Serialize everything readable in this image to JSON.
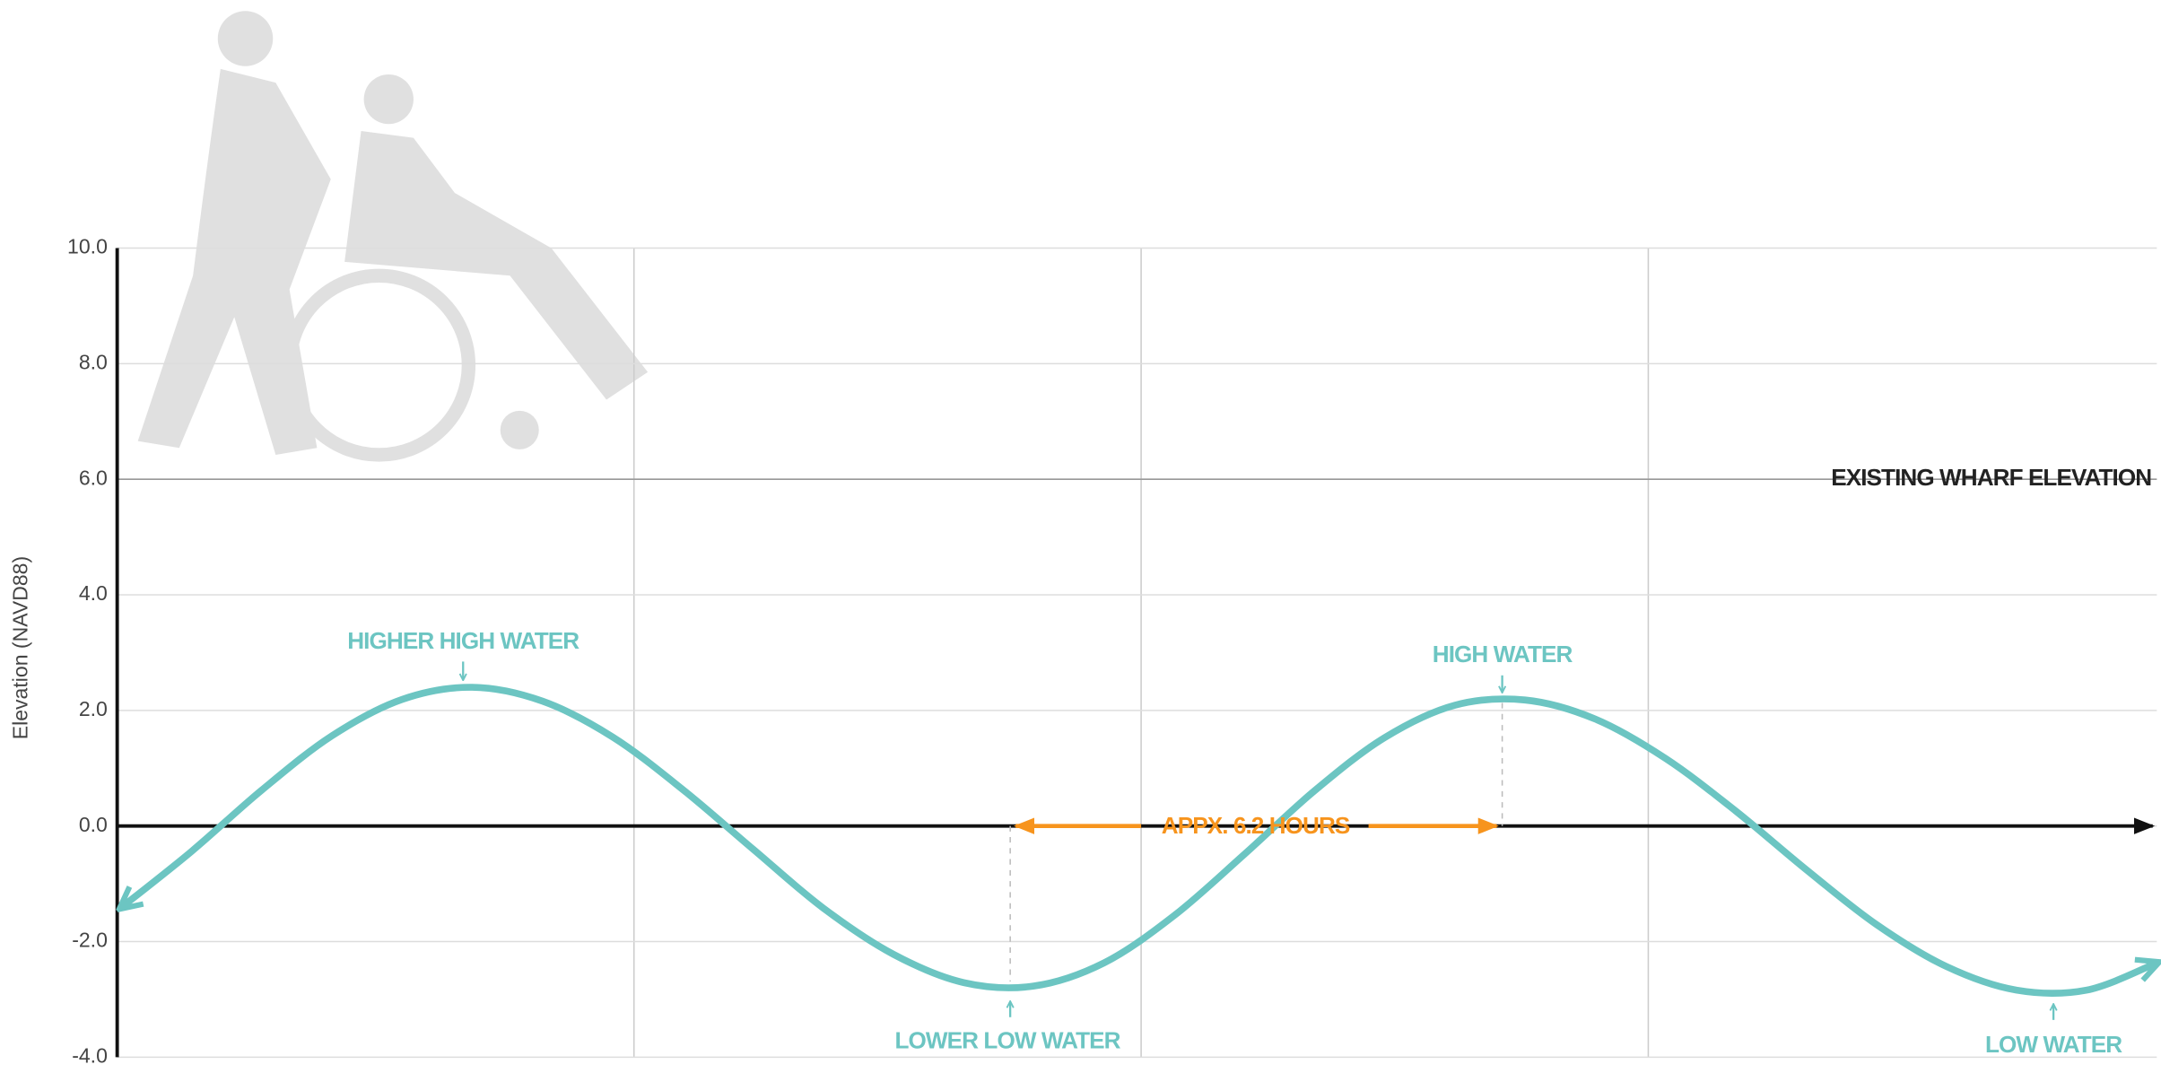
{
  "chart_data": {
    "type": "line",
    "y_label": "Elevation (NAVD88)",
    "categories": [
      null,
      null,
      null,
      null,
      null,
      null,
      null,
      null,
      null,
      null,
      null,
      null,
      null,
      null,
      null,
      null,
      null,
      null,
      null,
      null,
      null,
      null,
      null,
      null,
      null,
      null,
      null,
      null,
      null,
      null
    ],
    "series": [
      {
        "color": "#6cc5c2",
        "values": [
          -1.41,
          -0.44,
          0.62,
          1.56,
          2.19,
          2.4,
          2.16,
          1.54,
          0.63,
          -0.4,
          -1.42,
          -2.22,
          -2.71,
          -2.77,
          -2.37,
          -1.55,
          -0.49,
          0.61,
          1.53,
          2.09,
          2.18,
          1.85,
          1.17,
          0.26,
          -0.75,
          -1.7,
          -2.43,
          -2.84,
          -2.84,
          -2.37
        ]
      }
    ],
    "ylim": [
      -4,
      10
    ],
    "yticks": [
      {
        "value": -4,
        "label": "-4.0"
      },
      {
        "value": -2,
        "label": "-2.0"
      },
      {
        "value": 0,
        "label": "0.0"
      },
      {
        "value": 2,
        "label": "2.0"
      },
      {
        "value": 4,
        "label": "4.0"
      },
      {
        "value": 6,
        "label": "6.0"
      },
      {
        "value": 8,
        "label": "8.0"
      },
      {
        "value": 10,
        "label": "10.0"
      }
    ],
    "grid": true,
    "reference_line": {
      "value": 6,
      "label": "EXISTING WHARF ELEVATION"
    },
    "annotations": {
      "higher_high": "HIGHER HIGH WATER",
      "lower_low": "LOWER LOW WATER",
      "high": "HIGH WATER",
      "low": "LOW WATER",
      "span": "APPX. 6.2 HOURS"
    }
  }
}
